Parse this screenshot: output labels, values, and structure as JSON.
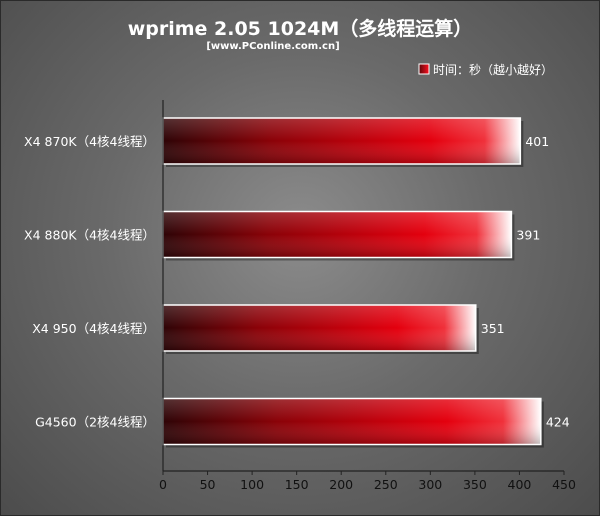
{
  "chart_data": {
    "type": "bar",
    "orientation": "horizontal",
    "title": "wprime 2.05 1024M（多线程运算）",
    "subtitle": "[www.PConline.com.cn]",
    "legend": "时间：秒（越小越好）",
    "categories": [
      "X4 870K（4核4线程）",
      "X4 880K（4核4线程）",
      "X4 950（4核4线程）",
      "G4560（2核4线程）"
    ],
    "values": [
      401,
      391,
      351,
      424
    ],
    "value_labels": [
      "401",
      "391",
      "351",
      "424"
    ],
    "xlim": [
      0,
      450
    ],
    "ticks": [
      "0",
      "50",
      "100",
      "150",
      "200",
      "250",
      "300",
      "350",
      "400",
      "450"
    ],
    "grid": false,
    "colors": {
      "bar_dark": "#3a0508",
      "bar_mid": "#e0000e",
      "bar_light": "#ffffff"
    }
  }
}
